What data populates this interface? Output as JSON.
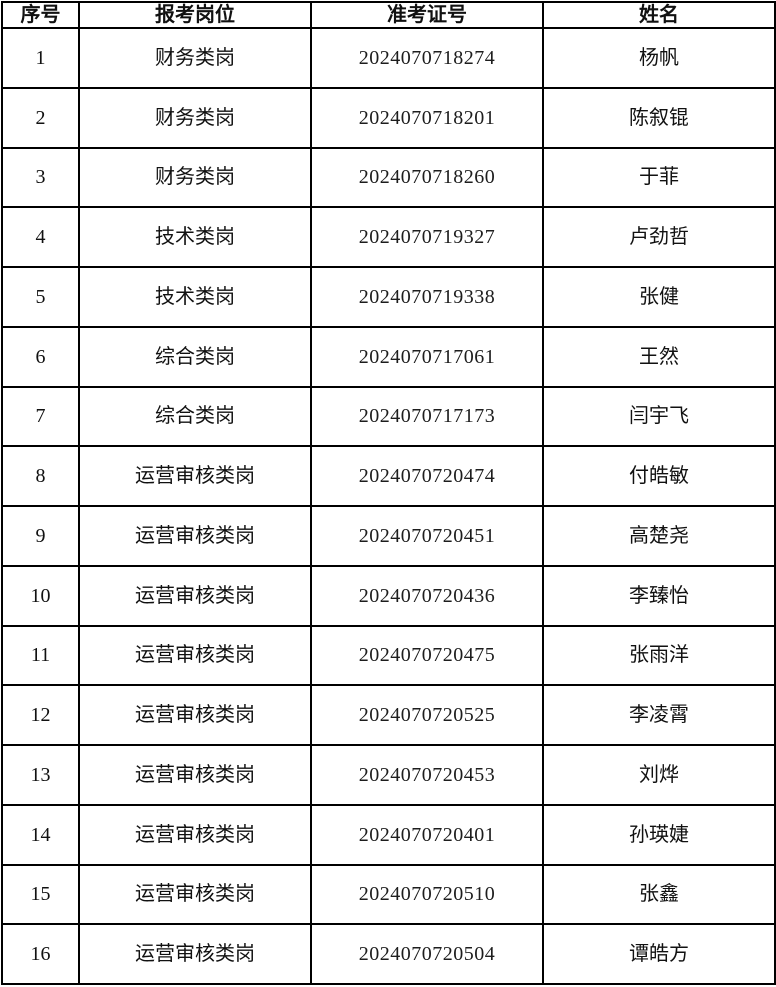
{
  "table": {
    "columns": [
      "序号",
      "报考岗位",
      "准考证号",
      "姓名"
    ],
    "rows": [
      {
        "no": "1",
        "position": "财务类岗",
        "ticket": "2024070718274",
        "name": "杨帆"
      },
      {
        "no": "2",
        "position": "财务类岗",
        "ticket": "2024070718201",
        "name": "陈叙锟"
      },
      {
        "no": "3",
        "position": "财务类岗",
        "ticket": "2024070718260",
        "name": "于菲"
      },
      {
        "no": "4",
        "position": "技术类岗",
        "ticket": "2024070719327",
        "name": "卢劲哲"
      },
      {
        "no": "5",
        "position": "技术类岗",
        "ticket": "2024070719338",
        "name": "张健"
      },
      {
        "no": "6",
        "position": "综合类岗",
        "ticket": "2024070717061",
        "name": "王然"
      },
      {
        "no": "7",
        "position": "综合类岗",
        "ticket": "2024070717173",
        "name": "闫宇飞"
      },
      {
        "no": "8",
        "position": "运营审核类岗",
        "ticket": "2024070720474",
        "name": "付皓敏"
      },
      {
        "no": "9",
        "position": "运营审核类岗",
        "ticket": "2024070720451",
        "name": "高楚尧"
      },
      {
        "no": "10",
        "position": "运营审核类岗",
        "ticket": "2024070720436",
        "name": "李臻怡"
      },
      {
        "no": "11",
        "position": "运营审核类岗",
        "ticket": "2024070720475",
        "name": "张雨洋"
      },
      {
        "no": "12",
        "position": "运营审核类岗",
        "ticket": "2024070720525",
        "name": "李凌霄"
      },
      {
        "no": "13",
        "position": "运营审核类岗",
        "ticket": "2024070720453",
        "name": "刘烨"
      },
      {
        "no": "14",
        "position": "运营审核类岗",
        "ticket": "2024070720401",
        "name": "孙瑛婕"
      },
      {
        "no": "15",
        "position": "运营审核类岗",
        "ticket": "2024070720510",
        "name": "张鑫"
      },
      {
        "no": "16",
        "position": "运营审核类岗",
        "ticket": "2024070720504",
        "name": "谭皓方"
      }
    ]
  },
  "colors": {
    "border": "#000000",
    "background": "#ffffff",
    "text": "#111111"
  }
}
